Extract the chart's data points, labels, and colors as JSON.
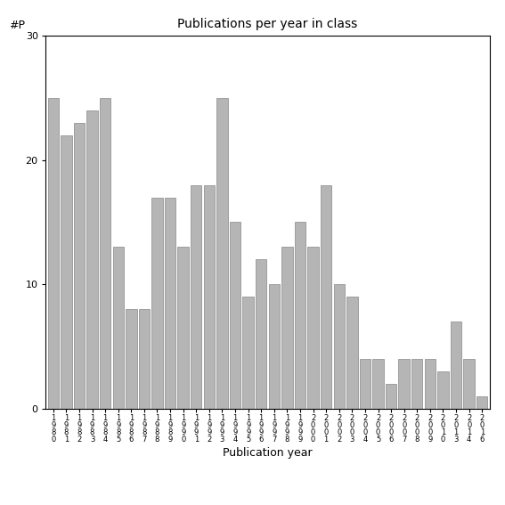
{
  "title": "Publications per year in class",
  "xlabel": "Publication year",
  "ylabel": "#P",
  "bar_color": "#b5b5b5",
  "edge_color": "#888888",
  "ylim": [
    0,
    30
  ],
  "yticks": [
    0,
    10,
    20,
    30
  ],
  "years": [
    "1980",
    "1981",
    "1982",
    "1983",
    "1984",
    "1985",
    "1986",
    "1987",
    "1988",
    "1989",
    "1990",
    "1991",
    "1992",
    "1993",
    "1994",
    "1995",
    "1996",
    "1997",
    "1998",
    "1999",
    "2000",
    "2001",
    "2002",
    "2003",
    "2004",
    "2005",
    "2006",
    "2007",
    "2008",
    "2009",
    "2010",
    "2013",
    "2014",
    "2016"
  ],
  "values": [
    25,
    22,
    23,
    24,
    25,
    13,
    8,
    8,
    17,
    17,
    13,
    18,
    18,
    25,
    15,
    9,
    12,
    10,
    13,
    15,
    13,
    18,
    10,
    9,
    4,
    4,
    2,
    4,
    4,
    4,
    3,
    7,
    4,
    1
  ],
  "tick_labels": [
    "1\n9\n8\n0",
    "1\n9\n8\n1",
    "1\n9\n8\n2",
    "1\n9\n8\n3",
    "1\n9\n8\n4",
    "1\n9\n8\n5",
    "1\n9\n8\n6",
    "1\n9\n8\n7",
    "1\n9\n8\n8",
    "1\n9\n8\n9",
    "1\n9\n9\n0",
    "1\n9\n9\n1",
    "1\n9\n9\n2",
    "1\n9\n9\n3",
    "1\n9\n9\n4",
    "1\n9\n9\n5",
    "1\n9\n9\n6",
    "1\n9\n9\n7",
    "1\n9\n9\n8",
    "1\n9\n9\n9",
    "2\n0\n0\n0",
    "2\n0\n0\n1",
    "2\n0\n0\n2",
    "2\n0\n0\n3",
    "2\n0\n0\n4",
    "2\n0\n0\n5",
    "2\n0\n0\n6",
    "2\n0\n0\n7",
    "2\n0\n0\n8",
    "2\n0\n0\n9",
    "2\n0\n1\n0",
    "2\n0\n1\n3",
    "2\n0\n1\n4",
    "2\n0\n1\n6"
  ]
}
